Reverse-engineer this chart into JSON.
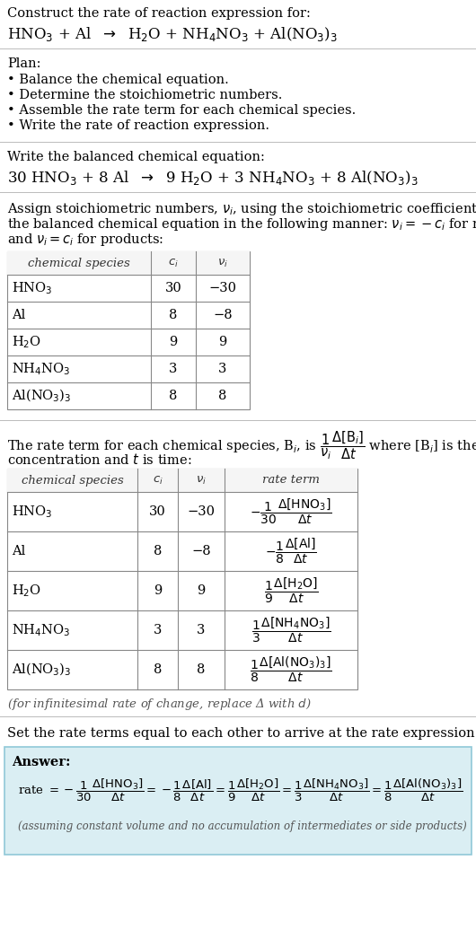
{
  "bg_color": "#ffffff",
  "text_color": "#000000",
  "title_line1": "Construct the rate of reaction expression for:",
  "plan_header": "Plan:",
  "plan_items": [
    "• Balance the chemical equation.",
    "• Determine the stoichiometric numbers.",
    "• Assemble the rate term for each chemical species.",
    "• Write the rate of reaction expression."
  ],
  "balanced_header": "Write the balanced chemical equation:",
  "stoich_intro_lines": [
    "Assign stoichiometric numbers, $\\nu_i$, using the stoichiometric coefficients, $c_i$, from",
    "the balanced chemical equation in the following manner: $\\nu_i = -c_i$ for reactants",
    "and $\\nu_i = c_i$ for products:"
  ],
  "table1_headers": [
    "chemical species",
    "$c_i$",
    "$\\nu_i$"
  ],
  "table1_rows": [
    [
      "HNO$_3$",
      "30",
      "−30"
    ],
    [
      "Al",
      "8",
      "−8"
    ],
    [
      "H$_2$O",
      "9",
      "9"
    ],
    [
      "NH$_4$NO$_3$",
      "3",
      "3"
    ],
    [
      "Al(NO$_3$)$_3$",
      "8",
      "8"
    ]
  ],
  "table2_headers": [
    "chemical species",
    "$c_i$",
    "$\\nu_i$",
    "rate term"
  ],
  "table2_rows": [
    [
      "HNO$_3$",
      "30",
      "−30",
      "$-\\dfrac{1}{30}\\dfrac{\\Delta[\\mathrm{HNO_3}]}{\\Delta t}$"
    ],
    [
      "Al",
      "8",
      "−8",
      "$-\\dfrac{1}{8}\\dfrac{\\Delta[\\mathrm{Al}]}{\\Delta t}$"
    ],
    [
      "H$_2$O",
      "9",
      "9",
      "$\\dfrac{1}{9}\\dfrac{\\Delta[\\mathrm{H_2O}]}{\\Delta t}$"
    ],
    [
      "NH$_4$NO$_3$",
      "3",
      "3",
      "$\\dfrac{1}{3}\\dfrac{\\Delta[\\mathrm{NH_4NO_3}]}{\\Delta t}$"
    ],
    [
      "Al(NO$_3$)$_3$",
      "8",
      "8",
      "$\\dfrac{1}{8}\\dfrac{\\Delta[\\mathrm{Al(NO_3)_3}]}{\\Delta t}$"
    ]
  ],
  "infinitesimal_note": "(for infinitesimal rate of change, replace Δ with $d$)",
  "set_rate_text": "Set the rate terms equal to each other to arrive at the rate expression:",
  "answer_box_color": "#daeef3",
  "answer_label": "Answer:",
  "answer_note": "(assuming constant volume and no accumulation of intermediates or side products)"
}
